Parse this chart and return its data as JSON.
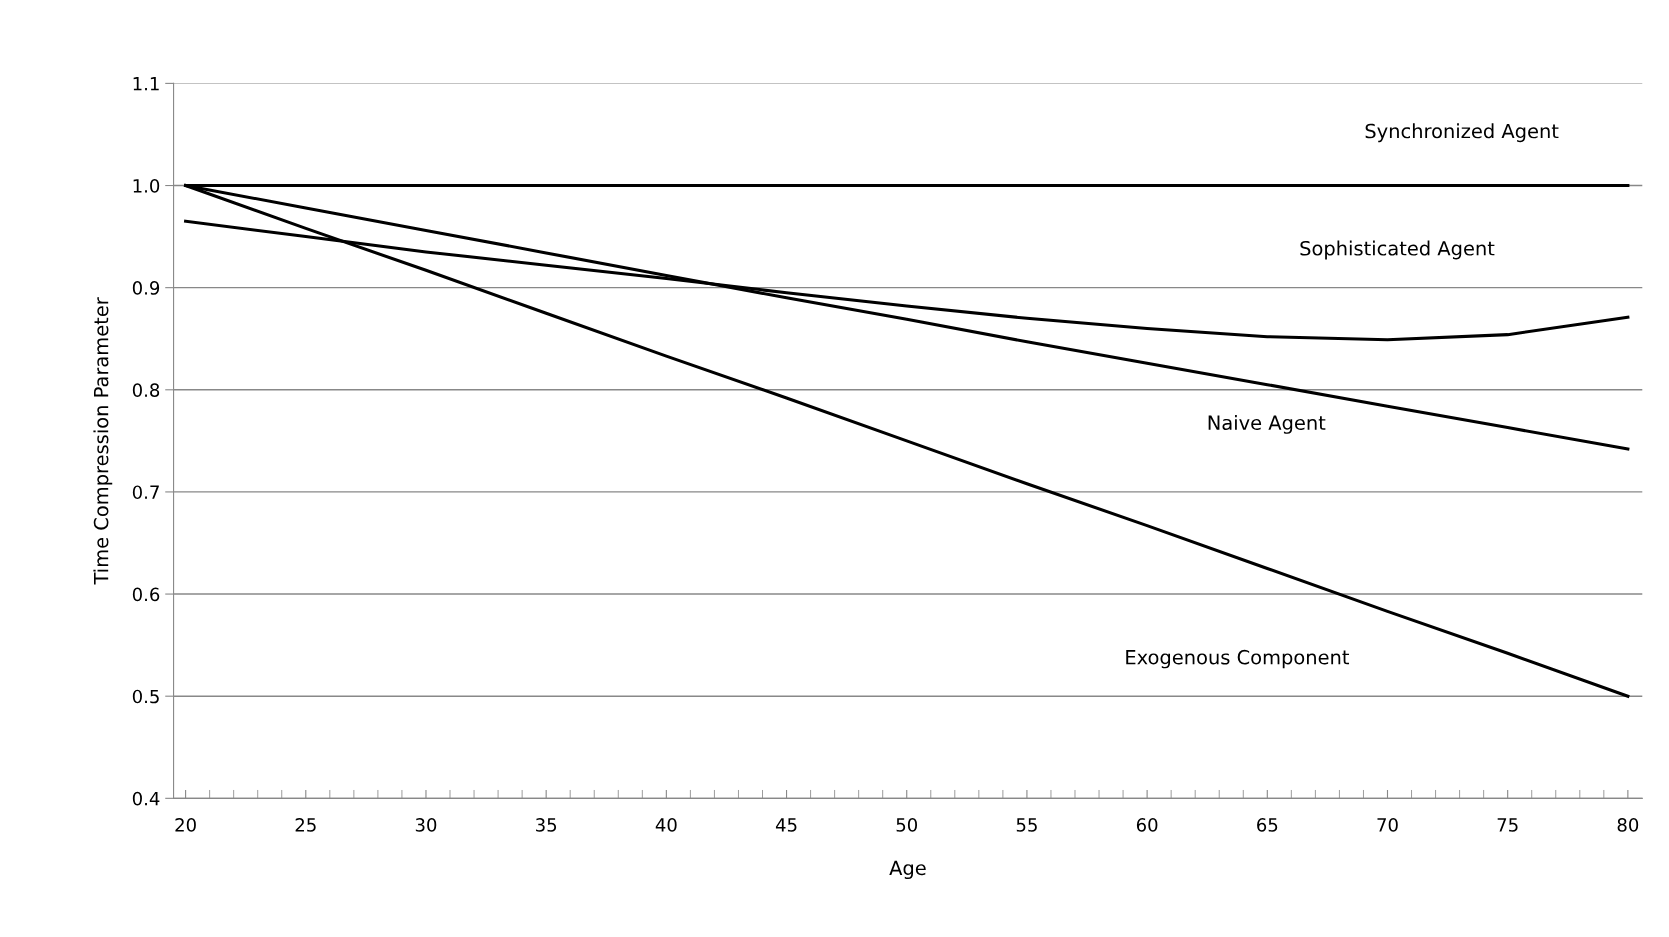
{
  "chart_data": {
    "type": "line",
    "xlabel": "Age",
    "ylabel": "Time Compression Parameter",
    "x": [
      20,
      25,
      30,
      35,
      40,
      45,
      50,
      55,
      60,
      65,
      70,
      75,
      80
    ],
    "series": [
      {
        "color": "#000000",
        "values": [
          1.0,
          1.0,
          1.0,
          1.0,
          1.0,
          1.0,
          1.0,
          1.0,
          1.0,
          1.0,
          1.0,
          1.0,
          1.0
        ]
      },
      {
        "color": "#000000",
        "values": [
          0.965,
          0.95,
          0.935,
          0.922,
          0.909,
          0.895,
          0.882,
          0.87,
          0.86,
          0.852,
          0.849,
          0.854,
          0.871
        ]
      },
      {
        "color": "#000000",
        "values": [
          1.0,
          0.978,
          0.956,
          0.934,
          0.912,
          0.89,
          0.869,
          0.847,
          0.826,
          0.805,
          0.784,
          0.763,
          0.742
        ]
      },
      {
        "color": "#000000",
        "values": [
          1.0,
          0.958,
          0.917,
          0.875,
          0.833,
          0.792,
          0.75,
          0.708,
          0.667,
          0.625,
          0.583,
          0.542,
          0.5
        ]
      }
    ],
    "xlim": [
      19.5,
      80.6
    ],
    "xticks": [
      20,
      25,
      30,
      35,
      40,
      45,
      50,
      55,
      60,
      65,
      70,
      75,
      80
    ],
    "ylim": [
      0.4,
      1.1
    ],
    "yticks": [
      0.4,
      0.5,
      0.6,
      0.7,
      0.8,
      0.9,
      {
        "value": 1,
        "label": "1.0"
      },
      1.1
    ],
    "grid": "y",
    "legend": false,
    "marker": "none",
    "line_style": "solid",
    "annotations": [
      "Synchronized Agent",
      "Sophisticated Agent",
      "Naive Agent",
      "Exogenous Component"
    ]
  }
}
